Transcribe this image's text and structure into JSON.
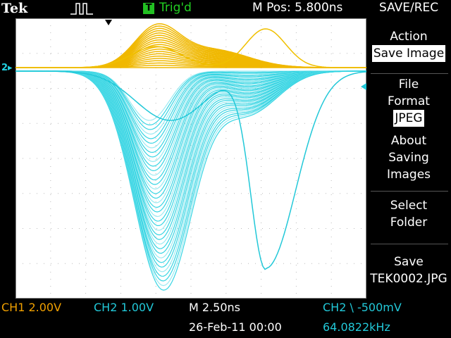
{
  "header": {
    "brand": "Tek",
    "trigger_status": "Trig'd",
    "trigger_badge": "T",
    "position": "M Pos: 5.800ns",
    "menu_title": "SAVE/REC"
  },
  "side_menu": {
    "action_label": "Action",
    "action_value": "Save Image",
    "format_label_1": "File",
    "format_label_2": "Format",
    "format_value": "JPEG",
    "about_1": "About",
    "about_2": "Saving",
    "about_3": "Images",
    "folder_1": "Select",
    "folder_2": "Folder",
    "save_1": "Save",
    "save_2": "TEK0002.JPG"
  },
  "status": {
    "ch1_scale": "CH1  2.00V",
    "ch2_scale": "CH2  1.00V",
    "timebase": "M 2.50ns",
    "trigger": "CH2 \\ -500mV",
    "date": "26-Feb-11 00:00",
    "frequency": "64.0822kHz"
  },
  "markers": {
    "ch_marker": "2"
  },
  "colors": {
    "ch1": "#f0b800",
    "ch2": "#22d0e0",
    "trig": "#22c022"
  }
}
